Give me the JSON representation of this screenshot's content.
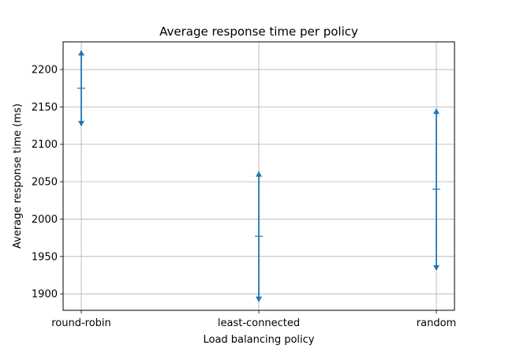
{
  "chart_data": {
    "type": "scatter",
    "title": "Average response time per policy",
    "xlabel": "Load balancing policy",
    "ylabel": "Average response time (ms)",
    "categories": [
      "round-robin",
      "least-connected",
      "random"
    ],
    "series": [
      {
        "means": [
          2175,
          1977,
          2040
        ],
        "upper": [
          2225,
          2063,
          2147
        ],
        "lower": [
          2125,
          1890,
          1932
        ]
      }
    ],
    "ylim": [
      1878,
      2237
    ],
    "yticks": [
      1900,
      1950,
      2000,
      2050,
      2100,
      2150,
      2200
    ],
    "grid": true,
    "color": "#1f77b4"
  }
}
